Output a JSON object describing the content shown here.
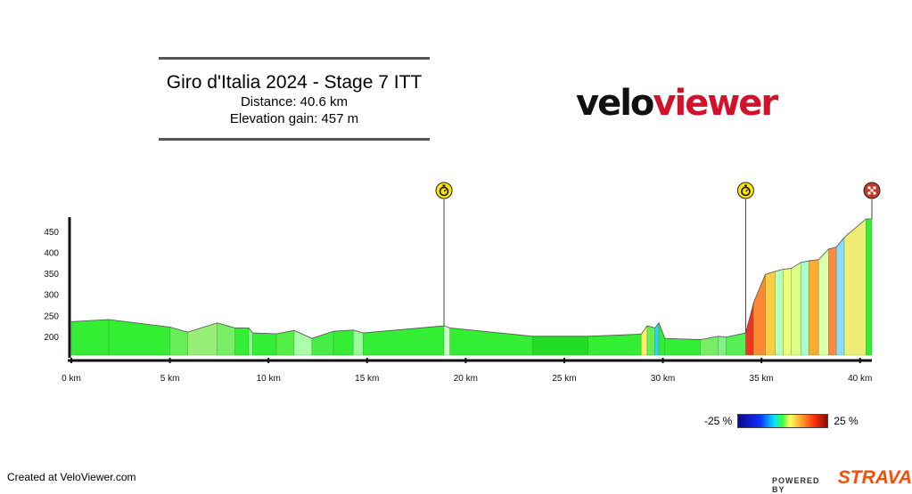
{
  "header": {
    "title": "Giro d'Italia 2024 - Stage 7 ITT",
    "distance": "Distance: 40.6 km",
    "elevation_gain": "Elevation gain: 457 m"
  },
  "logo": {
    "part1": "velo",
    "part2": "viewer"
  },
  "footer": {
    "created": "Created at VeloViewer.com",
    "powered_by": "POWERED BY",
    "strava": "STRAVA"
  },
  "legend": {
    "min_label": "-25 %",
    "max_label": "25 %"
  },
  "colors": {
    "flat": "#33ee33",
    "axis": "#111111",
    "brand_red": "#d2122a",
    "strava_orange": "#fc4c02"
  },
  "chart_data": {
    "type": "area",
    "title": "Giro d'Italia 2024 - Stage 7 ITT",
    "xlabel": "",
    "ylabel": "",
    "xlim": [
      0,
      40.6
    ],
    "ylim": [
      155,
      480
    ],
    "x_ticks": [
      0,
      5,
      10,
      15,
      20,
      25,
      30,
      35,
      40
    ],
    "x_tick_labels": [
      "0 km",
      "5 km",
      "10 km",
      "15 km",
      "20 km",
      "25 km",
      "30 km",
      "35 km",
      "40 km"
    ],
    "y_ticks": [
      200,
      250,
      300,
      350,
      400,
      450
    ],
    "y_tick_labels": [
      "200",
      "250",
      "300",
      "350",
      "400",
      "450"
    ],
    "grid": false,
    "x": [
      0,
      1.9,
      5.0,
      5.9,
      7.4,
      8.3,
      9.0,
      9.2,
      10.4,
      11.3,
      12.2,
      13.3,
      14.3,
      14.8,
      18.9,
      19.2,
      23.4,
      26.2,
      28.9,
      29.2,
      29.6,
      29.8,
      30.1,
      31.9,
      32.8,
      33.2,
      34.2,
      34.6,
      35.2,
      35.7,
      36.1,
      36.5,
      37.0,
      37.4,
      37.9,
      38.4,
      38.8,
      39.2,
      40.3,
      40.6
    ],
    "elevation": [
      235,
      240,
      222,
      210,
      232,
      220,
      220,
      208,
      206,
      214,
      195,
      212,
      215,
      208,
      225,
      220,
      200,
      200,
      205,
      225,
      220,
      232,
      195,
      192,
      200,
      198,
      208,
      280,
      348,
      355,
      360,
      362,
      376,
      380,
      383,
      408,
      413,
      436,
      480,
      480
    ],
    "segment_gradient_colors": [
      "#33ee33",
      "#33ee33",
      "#66ee55",
      "#99ee77",
      "#77ee66",
      "#33ee33",
      "#88ff88",
      "#33ee33",
      "#55ee44",
      "#aaffaa",
      "#44ee44",
      "#33ee33",
      "#99ff99",
      "#33ee33",
      "#ccffcc",
      "#33ee33",
      "#22dd22",
      "#33ee33",
      "#ffee66",
      "#66ee55",
      "#33ccff",
      "#33ee33",
      "#33ee33",
      "#77ee66",
      "#88ee88",
      "#55ee55",
      "#ee3322",
      "#ff8833",
      "#ffcc44",
      "#bbffbb",
      "#eeff77",
      "#ddff88",
      "#aaffcc",
      "#ffaa33",
      "#ddffaa",
      "#ff8844",
      "#88ddff",
      "#eeee77",
      "#33ee33"
    ],
    "markers": [
      {
        "type": "checkpoint",
        "x": 18.9
      },
      {
        "type": "checkpoint",
        "x": 34.2
      },
      {
        "type": "finish",
        "x": 40.6
      }
    ]
  }
}
